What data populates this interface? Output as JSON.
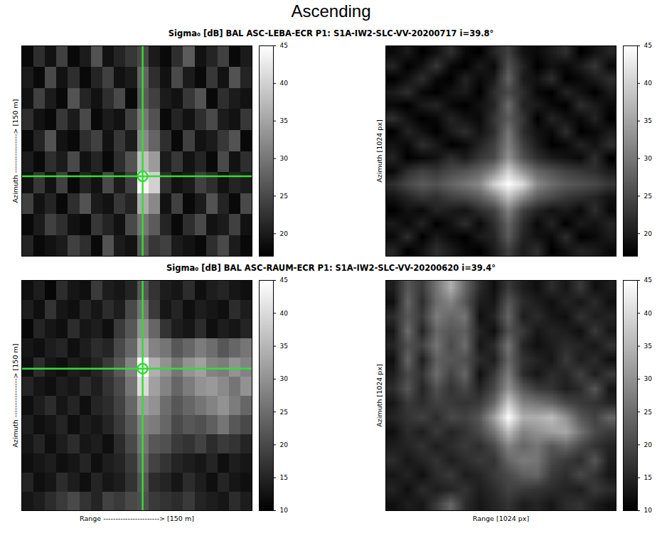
{
  "title": "Ascending",
  "chart_data": [
    {
      "type": "heatmap",
      "title": "Sigma₀ [dB] BAL ASC-LEBA-ECR P1: S1A-IW2-SLC-VV-20200717 i=39.8°",
      "ylabel": "Azimuth ----------------> [150 m]",
      "tick_labels": false,
      "color": "gray",
      "marker": "crosshair",
      "target": {
        "x": 10.5,
        "y": 6.2
      },
      "cells": [
        [
          18,
          22,
          19,
          24,
          18,
          20,
          26,
          19,
          21,
          23,
          25,
          20,
          18,
          22,
          27,
          19,
          21,
          24,
          18,
          20
        ],
        [
          20,
          18,
          25,
          19,
          22,
          18,
          21,
          24,
          19,
          20,
          28,
          22,
          19,
          25,
          20,
          18,
          23,
          19,
          26,
          21
        ],
        [
          19,
          24,
          20,
          18,
          26,
          21,
          19,
          22,
          25,
          18,
          27,
          24,
          20,
          19,
          23,
          26,
          18,
          22,
          20,
          19
        ],
        [
          22,
          19,
          18,
          23,
          20,
          25,
          18,
          20,
          19,
          24,
          30,
          26,
          18,
          21,
          19,
          22,
          25,
          20,
          19,
          23
        ],
        [
          18,
          21,
          26,
          19,
          18,
          22,
          24,
          19,
          23,
          20,
          32,
          28,
          22,
          18,
          24,
          19,
          20,
          23,
          26,
          18
        ],
        [
          20,
          18,
          22,
          20,
          25,
          19,
          21,
          18,
          22,
          26,
          38,
          34,
          20,
          23,
          19,
          21,
          18,
          25,
          19,
          22
        ],
        [
          19,
          23,
          19,
          24,
          18,
          21,
          19,
          25,
          20,
          24,
          44,
          40,
          22,
          19,
          20,
          24,
          22,
          19,
          21,
          20
        ],
        [
          24,
          19,
          21,
          18,
          22,
          26,
          20,
          19,
          23,
          21,
          36,
          32,
          19,
          24,
          18,
          20,
          26,
          21,
          18,
          25
        ],
        [
          18,
          20,
          24,
          22,
          19,
          18,
          23,
          21,
          19,
          25,
          30,
          27,
          21,
          18,
          22,
          25,
          19,
          20,
          24,
          19
        ],
        [
          21,
          18,
          19,
          20,
          24,
          22,
          18,
          26,
          20,
          19,
          27,
          23,
          24,
          20,
          19,
          18,
          22,
          25,
          20,
          18
        ]
      ],
      "colorbar": {
        "range": [
          17,
          45
        ],
        "ticks": [
          20,
          25,
          30,
          35,
          40,
          45
        ]
      }
    },
    {
      "type": "image",
      "ylabel": "Azimuth [1024 px]",
      "tick_labels": false,
      "color": "gray",
      "cells": [
        [
          18,
          20,
          17,
          19,
          22,
          18,
          17,
          21,
          24,
          19,
          18,
          20,
          22,
          17,
          19,
          21
        ],
        [
          21,
          17,
          19,
          23,
          18,
          17,
          20,
          18,
          26,
          21,
          17,
          19,
          18,
          20,
          23,
          18
        ],
        [
          17,
          19,
          22,
          18,
          17,
          21,
          18,
          20,
          28,
          20,
          19,
          22,
          17,
          18,
          20,
          22
        ],
        [
          20,
          22,
          18,
          17,
          19,
          20,
          17,
          22,
          25,
          22,
          18,
          17,
          21,
          19,
          17,
          20
        ],
        [
          18,
          17,
          20,
          21,
          18,
          17,
          19,
          21,
          29,
          21,
          20,
          18,
          17,
          22,
          20,
          18
        ],
        [
          22,
          19,
          17,
          18,
          21,
          19,
          18,
          23,
          27,
          23,
          17,
          21,
          19,
          18,
          21,
          17
        ],
        [
          17,
          21,
          19,
          17,
          20,
          22,
          19,
          22,
          30,
          22,
          19,
          18,
          22,
          17,
          18,
          20
        ],
        [
          19,
          18,
          22,
          20,
          17,
          18,
          21,
          24,
          31,
          24,
          20,
          17,
          18,
          21,
          19,
          22
        ],
        [
          21,
          17,
          18,
          19,
          22,
          20,
          23,
          25,
          33,
          26,
          22,
          20,
          19,
          18,
          22,
          17
        ],
        [
          18,
          22,
          24,
          23,
          25,
          26,
          28,
          32,
          40,
          33,
          28,
          26,
          24,
          23,
          22,
          20
        ],
        [
          22,
          25,
          27,
          26,
          28,
          30,
          32,
          40,
          45,
          41,
          32,
          29,
          27,
          26,
          25,
          23
        ],
        [
          19,
          21,
          23,
          22,
          24,
          25,
          27,
          31,
          38,
          32,
          27,
          25,
          23,
          22,
          21,
          19
        ],
        [
          17,
          19,
          18,
          21,
          20,
          19,
          22,
          24,
          31,
          24,
          21,
          19,
          20,
          18,
          22,
          18
        ],
        [
          20,
          18,
          21,
          17,
          19,
          22,
          18,
          22,
          28,
          22,
          18,
          21,
          17,
          20,
          19,
          21
        ],
        [
          18,
          22,
          17,
          20,
          18,
          17,
          20,
          21,
          27,
          21,
          19,
          18,
          22,
          17,
          18,
          20
        ],
        [
          21,
          17,
          19,
          22,
          20,
          18,
          17,
          20,
          24,
          20,
          22,
          17,
          19,
          21,
          20,
          18
        ]
      ],
      "colorbar": {
        "range": [
          17,
          45
        ],
        "ticks": [
          20,
          25,
          30,
          35,
          40,
          45
        ]
      }
    },
    {
      "type": "heatmap",
      "title": "Sigma₀ [dB] BAL ASC-RAUM-ECR P1: S1A-IW2-SLC-VV-20200620 i=39.4°",
      "xlabel": "Range -----------------------> [150 m]",
      "ylabel": "Azimuth ----------------> [150 m]",
      "tick_labels": false,
      "color": "gray",
      "marker": "crosshair",
      "target": {
        "x": 10.5,
        "y": 4.6
      },
      "cells": [
        [
          12,
          14,
          11,
          16,
          13,
          12,
          18,
          14,
          13,
          15,
          22,
          17,
          14,
          13,
          16,
          12,
          14,
          15,
          13,
          12
        ],
        [
          14,
          12,
          17,
          13,
          12,
          15,
          13,
          16,
          14,
          20,
          26,
          18,
          13,
          15,
          12,
          14,
          13,
          12,
          16,
          14
        ],
        [
          11,
          15,
          13,
          12,
          16,
          13,
          14,
          12,
          18,
          22,
          30,
          24,
          17,
          14,
          13,
          16,
          12,
          14,
          13,
          15
        ],
        [
          13,
          12,
          14,
          15,
          12,
          14,
          16,
          15,
          20,
          24,
          34,
          28,
          26,
          22,
          24,
          27,
          25,
          22,
          24,
          26
        ],
        [
          12,
          16,
          13,
          12,
          14,
          13,
          15,
          18,
          22,
          28,
          45,
          34,
          30,
          26,
          30,
          32,
          28,
          27,
          30,
          28
        ],
        [
          15,
          13,
          12,
          14,
          13,
          16,
          14,
          17,
          20,
          26,
          40,
          32,
          28,
          24,
          27,
          30,
          31,
          29,
          26,
          30
        ],
        [
          12,
          14,
          16,
          13,
          15,
          12,
          15,
          16,
          19,
          24,
          32,
          30,
          25,
          22,
          24,
          26,
          28,
          30,
          27,
          24
        ],
        [
          14,
          12,
          13,
          15,
          12,
          14,
          13,
          15,
          18,
          22,
          28,
          27,
          24,
          20,
          22,
          21,
          23,
          26,
          22,
          20
        ],
        [
          13,
          15,
          12,
          14,
          16,
          13,
          14,
          12,
          16,
          20,
          26,
          22,
          21,
          18,
          17,
          19,
          16,
          18,
          17,
          15
        ],
        [
          12,
          13,
          14,
          12,
          13,
          15,
          12,
          14,
          15,
          18,
          24,
          19,
          17,
          15,
          14,
          13,
          15,
          12,
          14,
          13
        ],
        [
          15,
          12,
          13,
          16,
          14,
          12,
          15,
          13,
          14,
          17,
          22,
          16,
          15,
          13,
          16,
          14,
          12,
          15,
          13,
          12
        ],
        [
          13,
          14,
          16,
          18,
          20,
          17,
          15,
          19,
          18,
          20,
          21,
          18,
          17,
          16,
          18,
          15,
          14,
          13,
          16,
          14
        ]
      ],
      "colorbar": {
        "range": [
          10,
          45
        ],
        "ticks": [
          10,
          15,
          20,
          25,
          30,
          35,
          40,
          45
        ]
      }
    },
    {
      "type": "image",
      "xlabel": "Range [1024 px]",
      "ylabel": "Azimuth [1024 px]",
      "tick_labels": false,
      "color": "gray",
      "cells": [
        [
          14,
          22,
          18,
          26,
          34,
          24,
          16,
          12,
          18,
          14,
          12,
          16,
          13,
          18,
          12,
          14
        ],
        [
          12,
          24,
          16,
          25,
          28,
          22,
          14,
          13,
          22,
          16,
          14,
          12,
          15,
          13,
          16,
          12
        ],
        [
          16,
          22,
          18,
          27,
          24,
          26,
          12,
          15,
          24,
          14,
          16,
          13,
          12,
          17,
          14,
          15
        ],
        [
          13,
          25,
          15,
          24,
          22,
          23,
          15,
          12,
          21,
          18,
          13,
          15,
          14,
          12,
          18,
          13
        ],
        [
          15,
          21,
          19,
          26,
          20,
          25,
          13,
          16,
          26,
          15,
          12,
          14,
          16,
          15,
          13,
          17
        ],
        [
          12,
          24,
          14,
          23,
          22,
          21,
          16,
          14,
          24,
          17,
          15,
          13,
          18,
          14,
          16,
          12
        ],
        [
          14,
          20,
          17,
          25,
          19,
          24,
          12,
          18,
          27,
          16,
          13,
          16,
          15,
          19,
          14,
          18
        ],
        [
          16,
          22,
          15,
          21,
          17,
          20,
          15,
          20,
          30,
          22,
          18,
          17,
          14,
          16,
          22,
          13
        ],
        [
          13,
          18,
          16,
          19,
          18,
          17,
          18,
          24,
          38,
          28,
          26,
          24,
          20,
          18,
          17,
          15
        ],
        [
          15,
          17,
          19,
          16,
          20,
          19,
          22,
          32,
          45,
          34,
          34,
          36,
          30,
          22,
          19,
          24
        ],
        [
          12,
          16,
          14,
          18,
          15,
          17,
          20,
          26,
          36,
          28,
          30,
          32,
          33,
          26,
          20,
          18
        ],
        [
          14,
          15,
          17,
          14,
          16,
          18,
          16,
          20,
          28,
          24,
          26,
          22,
          24,
          20,
          17,
          15
        ],
        [
          16,
          13,
          15,
          17,
          14,
          16,
          18,
          17,
          24,
          27,
          26,
          20,
          18,
          16,
          22,
          14
        ],
        [
          13,
          15,
          12,
          16,
          18,
          14,
          15,
          18,
          20,
          23,
          24,
          18,
          16,
          20,
          17,
          13
        ],
        [
          15,
          12,
          16,
          14,
          15,
          17,
          14,
          16,
          19,
          18,
          17,
          16,
          15,
          14,
          18,
          16
        ],
        [
          12,
          14,
          13,
          18,
          24,
          16,
          13,
          15,
          17,
          14,
          15,
          13,
          16,
          17,
          14,
          12
        ]
      ],
      "colorbar": {
        "range": [
          10,
          45
        ],
        "ticks": [
          10,
          15,
          20,
          25,
          30,
          35,
          40,
          45
        ]
      }
    }
  ]
}
